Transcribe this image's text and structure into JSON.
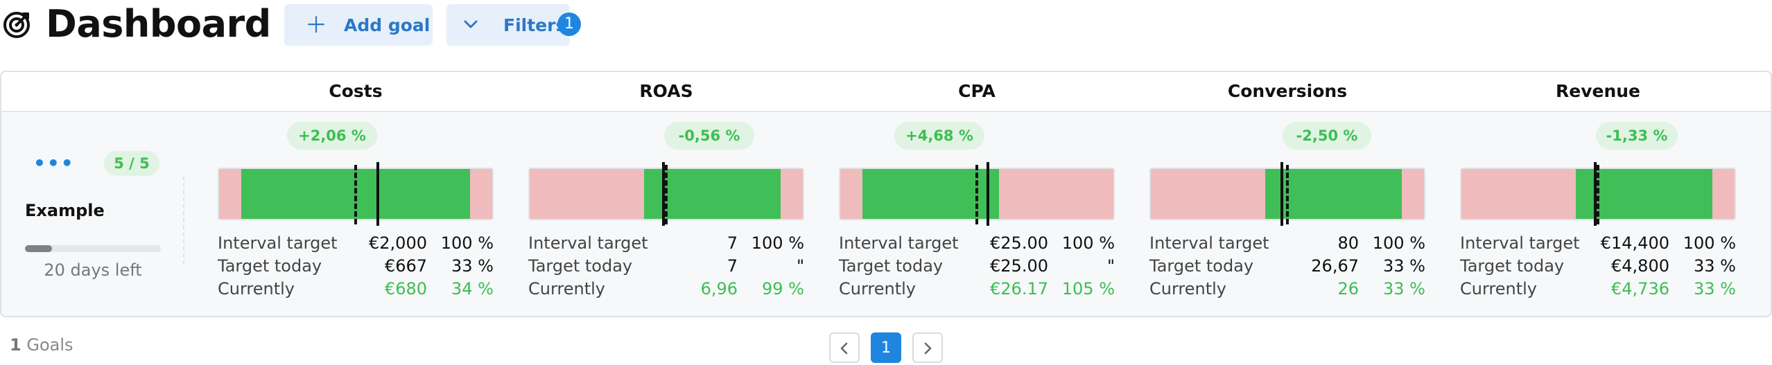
{
  "header": {
    "title": "Dashboard",
    "add_goal_label": "Add goal",
    "filters_label": "Filters",
    "filters_count": "1",
    "logo_icon": "target-icon",
    "add_icon": "plus-icon",
    "filter_icon": "chevron-down-icon"
  },
  "goal": {
    "more_icon": "ellipsis-icon",
    "count_badge": "5 / 5",
    "name": "Example",
    "progress_fraction": 0.2,
    "days_left": "20 days left"
  },
  "metrics": [
    {
      "title": "Costs",
      "change": "+2,06 %",
      "bar": {
        "green_start": 0.08,
        "green_end": 0.92,
        "dashed": 0.5,
        "solid": 0.58
      },
      "rows": [
        {
          "label": "Interval target",
          "value": "€2,000",
          "pct": "100 %"
        },
        {
          "label": "Target today",
          "value": "€667",
          "pct": "33 %"
        },
        {
          "label": "Currently",
          "value": "€680",
          "pct": "34 %"
        }
      ]
    },
    {
      "title": "ROAS",
      "change": "-0,56 %",
      "bar": {
        "green_start": 0.42,
        "green_end": 0.92,
        "dashed": 0.5,
        "solid": 0.49
      },
      "rows": [
        {
          "label": "Interval target",
          "value": "7",
          "pct": "100 %"
        },
        {
          "label": "Target today",
          "value": "7",
          "pct": "\""
        },
        {
          "label": "Currently",
          "value": "6,96",
          "pct": "99 %"
        }
      ]
    },
    {
      "title": "CPA",
      "change": "+4,68 %",
      "bar": {
        "green_start": 0.08,
        "green_end": 0.58,
        "dashed": 0.5,
        "solid": 0.54
      },
      "rows": [
        {
          "label": "Interval target",
          "value": "€25.00",
          "pct": "100 %"
        },
        {
          "label": "Target today",
          "value": "€25.00",
          "pct": "\""
        },
        {
          "label": "Currently",
          "value": "€26.17",
          "pct": "105 %"
        }
      ]
    },
    {
      "title": "Conversions",
      "change": "-2,50 %",
      "bar": {
        "green_start": 0.42,
        "green_end": 0.92,
        "dashed": 0.5,
        "solid": 0.48
      },
      "rows": [
        {
          "label": "Interval target",
          "value": "80",
          "pct": "100 %"
        },
        {
          "label": "Target today",
          "value": "26,67",
          "pct": "33 %"
        },
        {
          "label": "Currently",
          "value": "26",
          "pct": "33 %"
        }
      ]
    },
    {
      "title": "Revenue",
      "change": "-1,33 %",
      "bar": {
        "green_start": 0.42,
        "green_end": 0.92,
        "dashed": 0.5,
        "solid": 0.49
      },
      "rows": [
        {
          "label": "Interval target",
          "value": "€14,400",
          "pct": "100 %"
        },
        {
          "label": "Target today",
          "value": "€4,800",
          "pct": "33 %"
        },
        {
          "label": "Currently",
          "value": "€4,736",
          "pct": "33 %"
        }
      ]
    }
  ],
  "footer": {
    "goals_count": "1",
    "goals_label": "Goals",
    "prev_icon": "chevron-left-icon",
    "next_icon": "chevron-right-icon",
    "current_page": "1"
  },
  "colors": {
    "accent": "#1f86e0",
    "green": "#40bf58",
    "red_zone": "#efbbbd",
    "chip_bg": "#e1f3e3",
    "chip_text": "#3cbf52"
  }
}
